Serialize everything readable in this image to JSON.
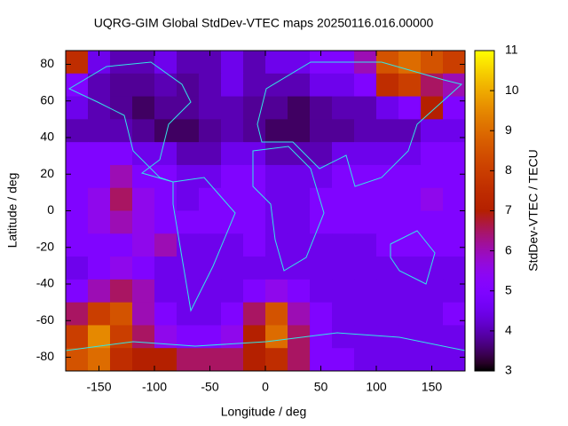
{
  "chart_data": {
    "type": "heatmap",
    "title": "UQRG-GIM Global StdDev-VTEC maps 20250116.016.00000",
    "x_label": "Longitude / deg",
    "y_label": "Latitude / deg",
    "z_label": "StdDev-VTEC / TECU",
    "x": [
      -170,
      -150,
      -130,
      -110,
      -90,
      -70,
      -50,
      -30,
      -10,
      10,
      30,
      50,
      70,
      90,
      110,
      130,
      150,
      170
    ],
    "y": [
      81.25,
      68.75,
      56.25,
      43.75,
      31.25,
      18.75,
      6.25,
      -6.25,
      -18.75,
      -31.25,
      -43.75,
      -56.25,
      -68.75,
      -81.25
    ],
    "z": [
      [
        7.5,
        4.5,
        4,
        4,
        4.5,
        4,
        4,
        4.5,
        4,
        4.5,
        4.5,
        5,
        5,
        6,
        8.5,
        9,
        8.5,
        8
      ],
      [
        5,
        4,
        3.8,
        3.8,
        4,
        3.8,
        4,
        4.5,
        4,
        4,
        4,
        4.5,
        4.5,
        5,
        7.5,
        8,
        6.5,
        6
      ],
      [
        4.5,
        4,
        3.8,
        3.5,
        3.8,
        3.8,
        4,
        4,
        3.8,
        3.8,
        3.5,
        3.8,
        4,
        4,
        4.5,
        5,
        7,
        5
      ],
      [
        4,
        4,
        4,
        3.8,
        3.5,
        3.5,
        3.8,
        4,
        3.8,
        3.5,
        3.5,
        3.8,
        3.8,
        4,
        4,
        4,
        4.5,
        4.5
      ],
      [
        5,
        5,
        5,
        4.5,
        4.5,
        4,
        4,
        4.5,
        4.5,
        4,
        4,
        4,
        4.5,
        4.5,
        4.5,
        4.5,
        5,
        5
      ],
      [
        5,
        5,
        6,
        5,
        5,
        4.5,
        4.5,
        5,
        5,
        4.5,
        4.5,
        4.5,
        5,
        5,
        5,
        5,
        5,
        5
      ],
      [
        5,
        5.5,
        6.5,
        5.5,
        5,
        4.5,
        5,
        5,
        5,
        4.5,
        4.5,
        5,
        5,
        5,
        5,
        5,
        5.5,
        5
      ],
      [
        5,
        5.5,
        6,
        5.5,
        5,
        5,
        5,
        5,
        5,
        4.5,
        4.5,
        5,
        5,
        5,
        5,
        5,
        5,
        5
      ],
      [
        5,
        5,
        5,
        5.5,
        6,
        4.5,
        4.5,
        4.5,
        5,
        4.5,
        4.5,
        4.5,
        4.5,
        4.5,
        5,
        5,
        5,
        5
      ],
      [
        4.5,
        5,
        5.5,
        5,
        4.5,
        4.5,
        4.5,
        4.5,
        4.5,
        4.5,
        4.5,
        4.5,
        4.5,
        4.5,
        4.5,
        4.5,
        4.5,
        4.5
      ],
      [
        5,
        6,
        6.5,
        6,
        4.5,
        4.5,
        4.5,
        4.5,
        5,
        5.5,
        5,
        4.5,
        4.5,
        4.5,
        4.5,
        4.5,
        4.5,
        4.5
      ],
      [
        6.5,
        8,
        8.5,
        6,
        5,
        4.5,
        4.5,
        5,
        6.5,
        8.5,
        6,
        5,
        4.5,
        4.5,
        4.5,
        4.5,
        4.5,
        5
      ],
      [
        8,
        9.5,
        8,
        6.5,
        5.5,
        5,
        5,
        5.5,
        7,
        9,
        6.5,
        5,
        4.5,
        4.5,
        4.5,
        4.5,
        4.5,
        4.5
      ],
      [
        8.5,
        9,
        7.5,
        7,
        7,
        6.5,
        6.5,
        6.5,
        7,
        7.5,
        6.5,
        5,
        5,
        4.5,
        4.5,
        4.5,
        4.5,
        4.5
      ]
    ],
    "xlim": [
      -180,
      180
    ],
    "ylim": [
      -87.5,
      87.5
    ],
    "zlim": [
      3,
      11
    ],
    "xticks": [
      -150,
      -100,
      -50,
      0,
      50,
      100,
      150
    ],
    "yticks": [
      -80,
      -60,
      -40,
      -20,
      0,
      20,
      40,
      60,
      80
    ],
    "zticks": [
      3,
      4,
      5,
      6,
      7,
      8,
      9,
      10,
      11
    ]
  }
}
